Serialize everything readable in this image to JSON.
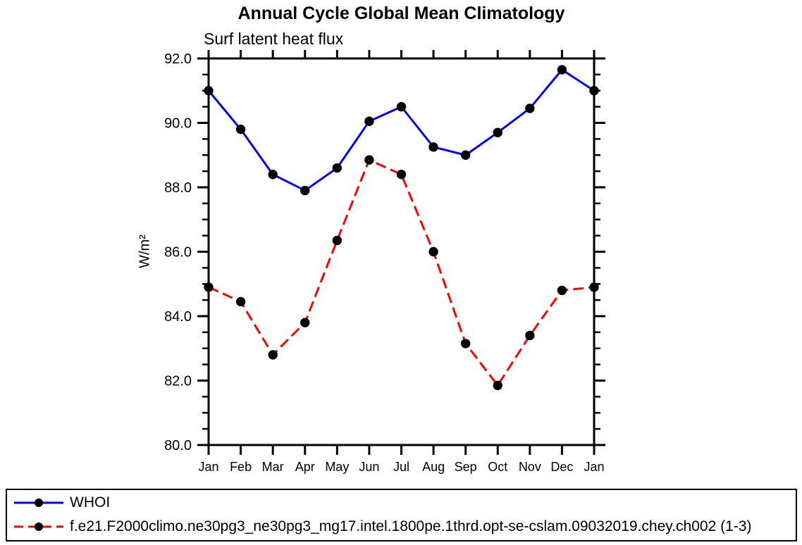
{
  "title": "Annual Cycle Global Mean Climatology",
  "subtitle": "Surf latent heat flux",
  "ylabel": "W/m²",
  "chart_data": {
    "type": "line",
    "x_categories": [
      "Jan",
      "Feb",
      "Mar",
      "Apr",
      "May",
      "Jun",
      "Jul",
      "Aug",
      "Sep",
      "Oct",
      "Nov",
      "Dec",
      "Jan"
    ],
    "series": [
      {
        "name": "WHOI",
        "color": "#0000ff",
        "line_style": "solid",
        "marker": "circle",
        "marker_color": "#000000",
        "values": [
          91.0,
          89.8,
          88.4,
          87.9,
          88.6,
          90.05,
          90.5,
          89.25,
          89.0,
          89.7,
          90.45,
          91.65,
          91.0
        ]
      },
      {
        "name": "f.e21.F2000climo.ne30pg3_ne30pg3_mg17.intel.1800pe.1thrd.opt-se-cslam.09032019.chey.ch002 (1-3)",
        "color": "#ff0000",
        "line_style": "dashed",
        "marker": "circle",
        "marker_color": "#000000",
        "values": [
          84.9,
          84.45,
          82.8,
          83.8,
          86.35,
          88.85,
          88.4,
          86.0,
          83.15,
          81.85,
          83.4,
          84.8,
          84.9
        ]
      }
    ],
    "ylim": [
      80.0,
      92.0
    ],
    "ytick_labels": [
      "80.0",
      "82.0",
      "84.0",
      "86.0",
      "88.0",
      "90.0",
      "92.0"
    ],
    "ytick_major_interval": 2.0,
    "ytick_minor_interval": 0.5,
    "xlabel": "",
    "ylabel": "W/m²",
    "grid": false,
    "legend_position": "bottom"
  },
  "legend": {
    "entries": [
      {
        "label": "WHOI"
      },
      {
        "label": "f.e21.F2000climo.ne30pg3_ne30pg3_mg17.intel.1800pe.1thrd.opt-se-cslam.09032019.chey.ch002 (1-3)"
      }
    ]
  }
}
